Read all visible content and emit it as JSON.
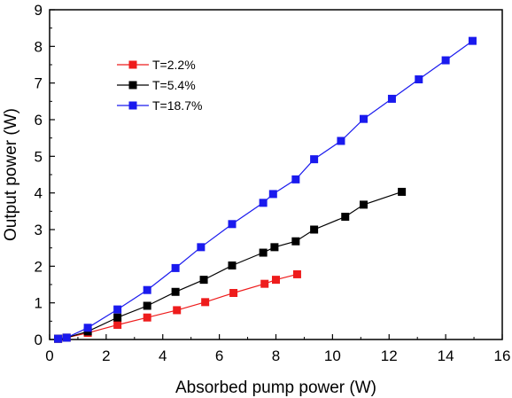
{
  "chart_data": {
    "type": "line",
    "title": "",
    "xlabel": "Absorbed pump power (W)",
    "ylabel": "Output power (W)",
    "xlim": [
      0,
      16
    ],
    "ylim": [
      0,
      9
    ],
    "xticks": [
      0,
      2,
      4,
      6,
      8,
      10,
      12,
      14,
      16
    ],
    "yticks": [
      0,
      1,
      2,
      3,
      4,
      5,
      6,
      7,
      8,
      9
    ],
    "grid": false,
    "legend_position": "top-left",
    "series": [
      {
        "name": "T=2.2%",
        "color": "#ee1c1c",
        "marker": "square",
        "points": [
          [
            0.3,
            0.02
          ],
          [
            0.6,
            0.05
          ],
          [
            1.35,
            0.18
          ],
          [
            2.4,
            0.4
          ],
          [
            3.45,
            0.6
          ],
          [
            4.5,
            0.8
          ],
          [
            5.5,
            1.02
          ],
          [
            6.5,
            1.27
          ],
          [
            7.6,
            1.52
          ],
          [
            8.0,
            1.63
          ],
          [
            8.75,
            1.78
          ]
        ]
      },
      {
        "name": "T=5.4%",
        "color": "#000000",
        "marker": "square",
        "points": [
          [
            0.3,
            0.02
          ],
          [
            0.6,
            0.05
          ],
          [
            1.35,
            0.22
          ],
          [
            2.4,
            0.6
          ],
          [
            3.45,
            0.92
          ],
          [
            4.45,
            1.3
          ],
          [
            5.45,
            1.63
          ],
          [
            6.45,
            2.02
          ],
          [
            7.55,
            2.37
          ],
          [
            7.95,
            2.52
          ],
          [
            8.7,
            2.68
          ],
          [
            9.35,
            3.0
          ],
          [
            10.45,
            3.35
          ],
          [
            11.1,
            3.68
          ],
          [
            12.45,
            4.03
          ]
        ]
      },
      {
        "name": "T=18.7%",
        "color": "#1a1aee",
        "marker": "square",
        "points": [
          [
            0.3,
            0.02
          ],
          [
            0.6,
            0.05
          ],
          [
            1.35,
            0.32
          ],
          [
            2.4,
            0.82
          ],
          [
            3.45,
            1.35
          ],
          [
            4.45,
            1.95
          ],
          [
            5.35,
            2.52
          ],
          [
            6.45,
            3.15
          ],
          [
            7.55,
            3.73
          ],
          [
            7.9,
            3.97
          ],
          [
            8.7,
            4.37
          ],
          [
            9.35,
            4.92
          ],
          [
            10.3,
            5.42
          ],
          [
            11.1,
            6.02
          ],
          [
            12.1,
            6.57
          ],
          [
            13.05,
            7.1
          ],
          [
            14.0,
            7.62
          ],
          [
            14.95,
            8.15
          ]
        ]
      }
    ]
  }
}
